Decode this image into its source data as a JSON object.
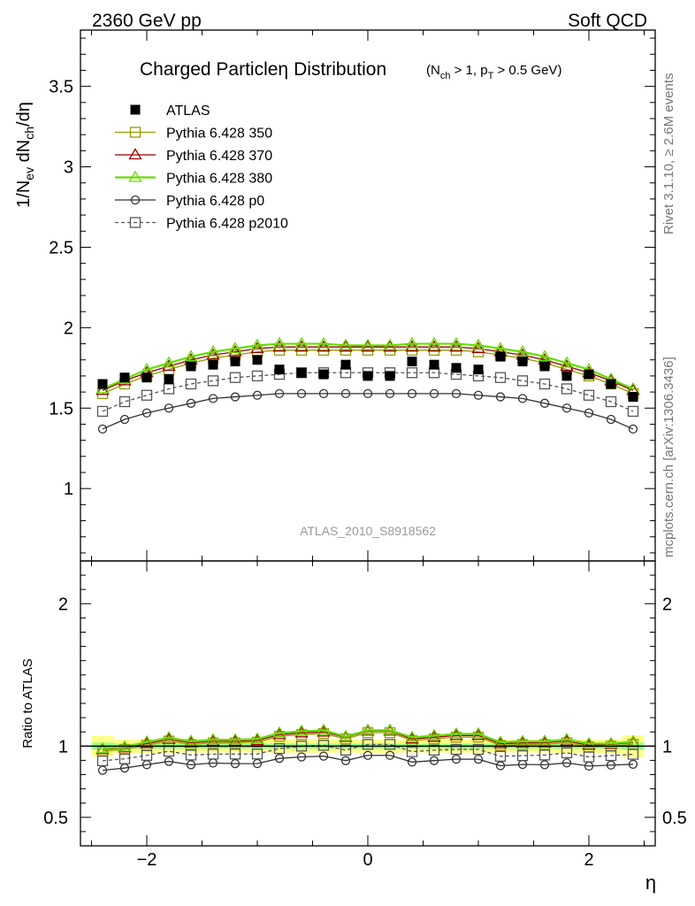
{
  "header": {
    "left": "2360 GeV pp",
    "right": "Soft QCD"
  },
  "side_labels": {
    "top": "Rivet 3.1.10, ≥ 2.6M events",
    "bottom": "mcplots.cern.ch [arXiv:1306.3436]"
  },
  "chart_data": {
    "type": "line",
    "title": "Charged Particle η Distribution",
    "title_main": "Charged Particle",
    "title_eta": "η",
    "title_tail": "Distribution",
    "title_cuts": "(N_ch > 1, p_T > 0.5 GeV)",
    "ylabel": "1/N_ev dN_ch/dη",
    "xlabel": "η",
    "ratio_ylabel": "Ratio to ATLAS",
    "watermark": "ATLAS_2010_S8918562",
    "xlim": [
      -2.6,
      2.6
    ],
    "ylim": [
      0.55,
      3.85
    ],
    "ratio_ylim": [
      0.3,
      2.3
    ],
    "xticks": [
      -2,
      0,
      2
    ],
    "xtick_labels": [
      "−2",
      "0",
      "2"
    ],
    "yticks": [
      1,
      1.5,
      2,
      2.5,
      3,
      3.5
    ],
    "ytick_labels": [
      "1",
      "1.5",
      "2",
      "2.5",
      "3",
      "3.5"
    ],
    "ratio_yticks": [
      0.5,
      1,
      2
    ],
    "ratio_ytick_labels": [
      "0.5",
      "1",
      "2"
    ],
    "legend_position": "top-left",
    "x": [
      -2.4,
      -2.2,
      -2.0,
      -1.8,
      -1.6,
      -1.4,
      -1.2,
      -1.0,
      -0.8,
      -0.6,
      -0.4,
      -0.2,
      0.0,
      0.2,
      0.4,
      0.6,
      0.8,
      1.0,
      1.2,
      1.4,
      1.6,
      1.8,
      2.0,
      2.2,
      2.4
    ],
    "data_series": {
      "name": "ATLAS",
      "values": [
        1.65,
        1.69,
        1.69,
        1.68,
        1.76,
        1.77,
        1.79,
        1.8,
        1.74,
        1.72,
        1.71,
        1.77,
        1.7,
        1.7,
        1.79,
        1.77,
        1.75,
        1.74,
        1.82,
        1.79,
        1.76,
        1.7,
        1.71,
        1.65,
        1.57
      ],
      "band_stat": [
        0.04,
        0.03,
        0.03,
        0.03,
        0.03,
        0.03,
        0.03,
        0.03,
        0.03,
        0.03,
        0.03,
        0.03,
        0.03,
        0.03,
        0.03,
        0.03,
        0.03,
        0.03,
        0.03,
        0.03,
        0.03,
        0.03,
        0.03,
        0.03,
        0.04
      ],
      "band_total": [
        0.12,
        0.08,
        0.08,
        0.08,
        0.08,
        0.08,
        0.08,
        0.08,
        0.08,
        0.08,
        0.08,
        0.08,
        0.08,
        0.08,
        0.08,
        0.08,
        0.08,
        0.08,
        0.08,
        0.08,
        0.08,
        0.08,
        0.08,
        0.08,
        0.12
      ]
    },
    "series": [
      {
        "name": "Pythia 6.428 350",
        "color": "#999900",
        "marker": "square-open",
        "dash": false,
        "values": [
          1.59,
          1.65,
          1.7,
          1.74,
          1.78,
          1.81,
          1.83,
          1.85,
          1.86,
          1.86,
          1.86,
          1.86,
          1.86,
          1.86,
          1.86,
          1.86,
          1.86,
          1.85,
          1.83,
          1.81,
          1.78,
          1.74,
          1.7,
          1.65,
          1.59
        ]
      },
      {
        "name": "Pythia 6.428 370",
        "color": "#990000",
        "marker": "triangle-open",
        "dash": false,
        "values": [
          1.61,
          1.67,
          1.72,
          1.76,
          1.8,
          1.83,
          1.85,
          1.87,
          1.88,
          1.88,
          1.88,
          1.88,
          1.88,
          1.88,
          1.88,
          1.88,
          1.88,
          1.87,
          1.85,
          1.83,
          1.8,
          1.76,
          1.72,
          1.67,
          1.61
        ]
      },
      {
        "name": "Pythia 6.428 380",
        "color": "#66dd00",
        "marker": "triangle-open",
        "dash": false,
        "values": [
          1.62,
          1.68,
          1.74,
          1.78,
          1.82,
          1.85,
          1.87,
          1.89,
          1.9,
          1.9,
          1.9,
          1.89,
          1.89,
          1.89,
          1.9,
          1.9,
          1.9,
          1.89,
          1.87,
          1.85,
          1.82,
          1.78,
          1.74,
          1.68,
          1.62
        ]
      },
      {
        "name": "Pythia 6.428 p0",
        "color": "#333333",
        "marker": "circle-open",
        "dash": false,
        "values": [
          1.37,
          1.43,
          1.47,
          1.5,
          1.53,
          1.56,
          1.57,
          1.58,
          1.59,
          1.59,
          1.59,
          1.59,
          1.59,
          1.59,
          1.59,
          1.59,
          1.59,
          1.58,
          1.57,
          1.56,
          1.53,
          1.5,
          1.47,
          1.43,
          1.37
        ]
      },
      {
        "name": "Pythia 6.428 p2010",
        "color": "#555555",
        "marker": "square-open",
        "dash": true,
        "values": [
          1.48,
          1.54,
          1.58,
          1.62,
          1.65,
          1.67,
          1.69,
          1.7,
          1.71,
          1.72,
          1.72,
          1.72,
          1.72,
          1.72,
          1.72,
          1.72,
          1.71,
          1.7,
          1.69,
          1.67,
          1.65,
          1.62,
          1.58,
          1.54,
          1.48
        ]
      }
    ]
  }
}
